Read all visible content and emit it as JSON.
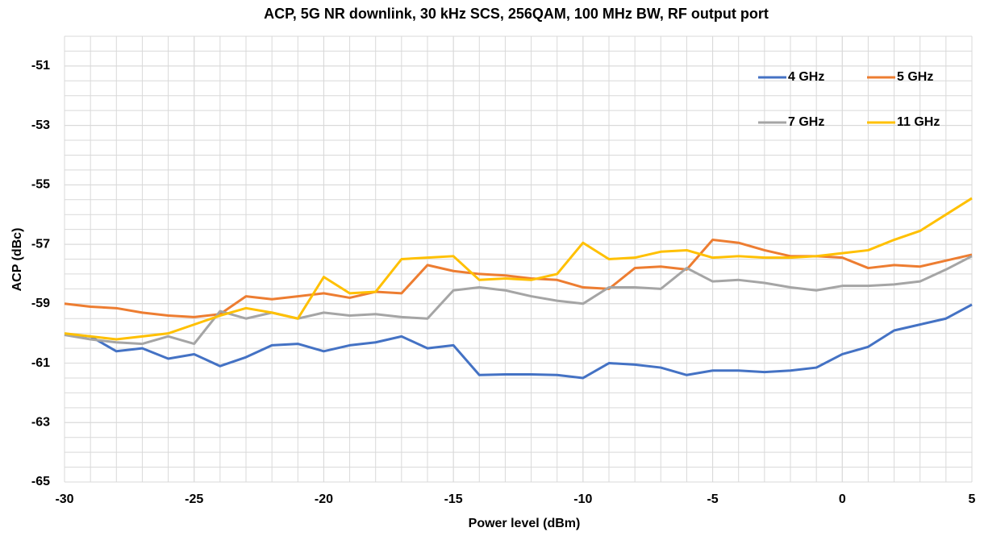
{
  "chart_data": {
    "type": "line",
    "title": "ACP, 5G NR downlink, 30 kHz SCS, 256QAM, 100 MHz BW, RF output port",
    "x_label": "Power level (dBm)",
    "y_label": "ACP (dBc)",
    "x": [
      -30,
      -29,
      -28,
      -27,
      -26,
      -25,
      -24,
      -23,
      -22,
      -21,
      -20,
      -19,
      -18,
      -17,
      -16,
      -15,
      -14,
      -13,
      -12,
      -11,
      -10,
      -9,
      -8,
      -7,
      -6,
      -5,
      -4,
      -3,
      -2,
      -1,
      0,
      1,
      2,
      3,
      4,
      5
    ],
    "series": [
      {
        "name": "4 GHz",
        "color": "#4472c4",
        "values": [
          -60.03,
          -60.1,
          -60.6,
          -60.5,
          -60.85,
          -60.7,
          -61.1,
          -60.8,
          -60.4,
          -60.35,
          -60.6,
          -60.4,
          -60.3,
          -60.1,
          -60.5,
          -60.4,
          -61.4,
          -61.38,
          -61.38,
          -61.4,
          -61.5,
          -61.0,
          -61.05,
          -61.15,
          -61.4,
          -61.25,
          -61.25,
          -61.3,
          -61.25,
          -61.15,
          -60.7,
          -60.45,
          -59.9,
          -59.7,
          -59.5,
          -59.03
        ]
      },
      {
        "name": "5 GHz",
        "color": "#ed7d31",
        "values": [
          -59.0,
          -59.1,
          -59.15,
          -59.3,
          -59.4,
          -59.45,
          -59.35,
          -58.75,
          -58.85,
          -58.75,
          -58.65,
          -58.8,
          -58.6,
          -58.65,
          -57.7,
          -57.9,
          -58.0,
          -58.05,
          -58.15,
          -58.2,
          -58.45,
          -58.5,
          -57.8,
          -57.75,
          -57.85,
          -56.85,
          -56.95,
          -57.2,
          -57.4,
          -57.4,
          -57.45,
          -57.8,
          -57.7,
          -57.75,
          -57.55,
          -57.35
        ]
      },
      {
        "name": "7 GHz",
        "color": "#a5a5a5",
        "values": [
          -60.05,
          -60.2,
          -60.3,
          -60.35,
          -60.1,
          -60.35,
          -59.25,
          -59.5,
          -59.3,
          -59.5,
          -59.3,
          -59.4,
          -59.35,
          -59.45,
          -59.5,
          -58.55,
          -58.45,
          -58.55,
          -58.75,
          -58.9,
          -59.0,
          -58.45,
          -58.45,
          -58.5,
          -57.8,
          -58.25,
          -58.2,
          -58.3,
          -58.45,
          -58.55,
          -58.4,
          -58.4,
          -58.35,
          -58.25,
          -57.85,
          -57.4
        ]
      },
      {
        "name": "11 GHz",
        "color": "#ffc000",
        "values": [
          -60.0,
          -60.1,
          -60.2,
          -60.1,
          -60.0,
          -59.7,
          -59.4,
          -59.15,
          -59.3,
          -59.5,
          -58.1,
          -58.65,
          -58.6,
          -57.5,
          -57.45,
          -57.4,
          -58.2,
          -58.15,
          -58.2,
          -58.0,
          -56.95,
          -57.5,
          -57.45,
          -57.25,
          -57.2,
          -57.45,
          -57.4,
          -57.45,
          -57.45,
          -57.4,
          -57.3,
          -57.2,
          -56.85,
          -56.55,
          -56.0,
          -55.45
        ]
      }
    ],
    "xlim": [
      -30,
      5
    ],
    "xticks": [
      -30,
      -25,
      -20,
      -15,
      -10,
      -5,
      0,
      5
    ],
    "x_minor_step": 1,
    "ylim": [
      -65,
      -50
    ],
    "yticks": [
      -65,
      -63,
      -61,
      -59,
      -57,
      -55,
      -53,
      -51
    ],
    "y_minor_step": 0.5,
    "grid": true,
    "legend": "upper right"
  }
}
